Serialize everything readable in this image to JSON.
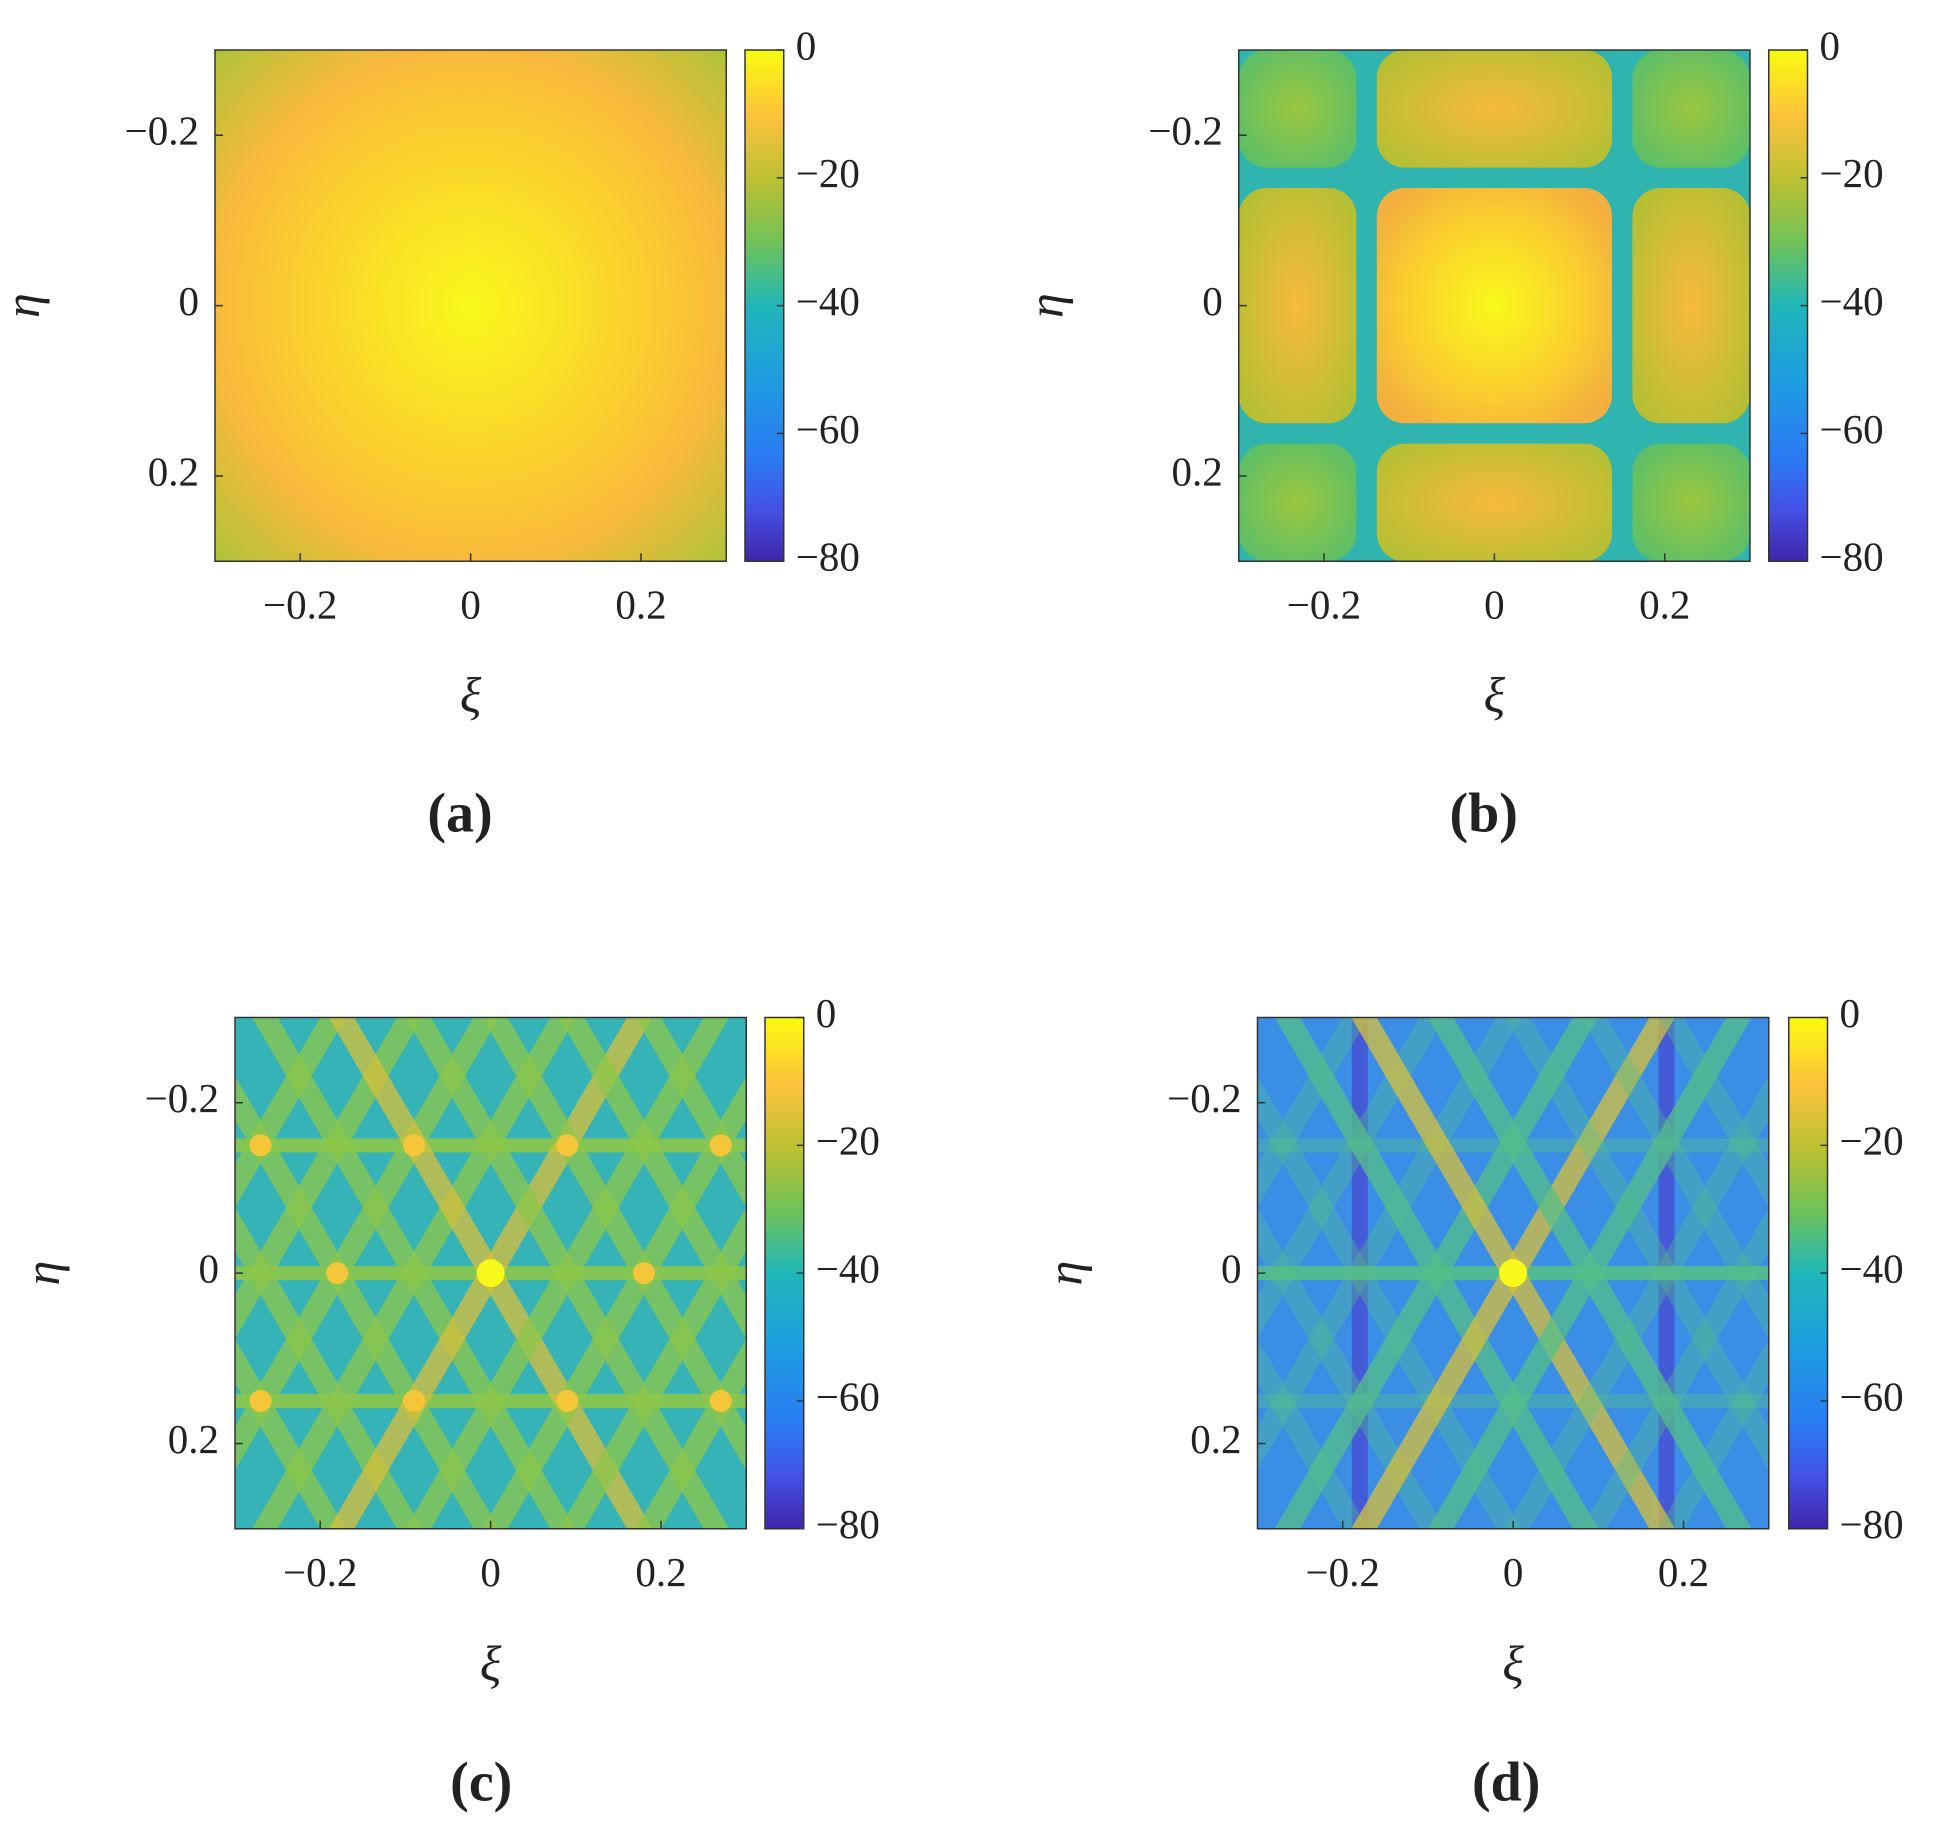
{
  "chart_data": [
    {
      "type": "heatmap",
      "caption": "(a)",
      "xlabel": "ξ",
      "ylabel": "η",
      "xlim": [
        -0.3,
        0.3
      ],
      "ylim": [
        -0.3,
        0.3
      ],
      "y_reversed": true,
      "xticks": [
        {
          "value": -0.2,
          "label": "−0.2"
        },
        0,
        0.2
      ],
      "yticks": [
        {
          "value": -0.2,
          "label": "−0.2"
        },
        0,
        0.2
      ],
      "clim": [
        -80,
        0
      ],
      "cticks": [
        {
          "value": -80,
          "label": "−80"
        },
        {
          "value": -60,
          "label": "−60"
        },
        {
          "value": -40,
          "label": "−40"
        },
        {
          "value": -20,
          "label": "−20"
        },
        0
      ]
    },
    {
      "type": "heatmap",
      "caption": "(b)",
      "xlabel": "ξ",
      "ylabel": "η",
      "xlim": [
        -0.3,
        0.3
      ],
      "ylim": [
        -0.3,
        0.3
      ],
      "y_reversed": true,
      "xticks": [
        {
          "value": -0.2,
          "label": "−0.2"
        },
        0,
        0.2
      ],
      "yticks": [
        {
          "value": -0.2,
          "label": "−0.2"
        },
        0,
        0.2
      ],
      "clim": [
        -80,
        0
      ],
      "cticks": [
        {
          "value": -80,
          "label": "−80"
        },
        {
          "value": -60,
          "label": "−60"
        },
        {
          "value": -40,
          "label": "−40"
        },
        {
          "value": -20,
          "label": "−20"
        },
        0
      ]
    },
    {
      "type": "heatmap",
      "caption": "(c)",
      "xlabel": "ξ",
      "ylabel": "η",
      "xlim": [
        -0.3,
        0.3
      ],
      "ylim": [
        -0.3,
        0.3
      ],
      "y_reversed": true,
      "xticks": [
        {
          "value": -0.2,
          "label": "−0.2"
        },
        0,
        0.2
      ],
      "yticks": [
        {
          "value": -0.2,
          "label": "−0.2"
        },
        0,
        0.2
      ],
      "clim": [
        -80,
        0
      ],
      "cticks": [
        {
          "value": -80,
          "label": "−80"
        },
        {
          "value": -60,
          "label": "−60"
        },
        {
          "value": -40,
          "label": "−40"
        },
        {
          "value": -20,
          "label": "−20"
        },
        0
      ]
    },
    {
      "type": "heatmap",
      "caption": "(d)",
      "xlabel": "ξ",
      "ylabel": "η",
      "xlim": [
        -0.3,
        0.3
      ],
      "ylim": [
        -0.3,
        0.3
      ],
      "y_reversed": true,
      "xticks": [
        {
          "value": -0.2,
          "label": "−0.2"
        },
        0,
        0.2
      ],
      "yticks": [
        {
          "value": -0.2,
          "label": "−0.2"
        },
        0,
        0.2
      ],
      "clim": [
        -80,
        0
      ],
      "cticks": [
        {
          "value": -80,
          "label": "−80"
        },
        {
          "value": -60,
          "label": "−60"
        },
        {
          "value": -40,
          "label": "−40"
        },
        {
          "value": -20,
          "label": "−20"
        },
        0
      ]
    }
  ]
}
